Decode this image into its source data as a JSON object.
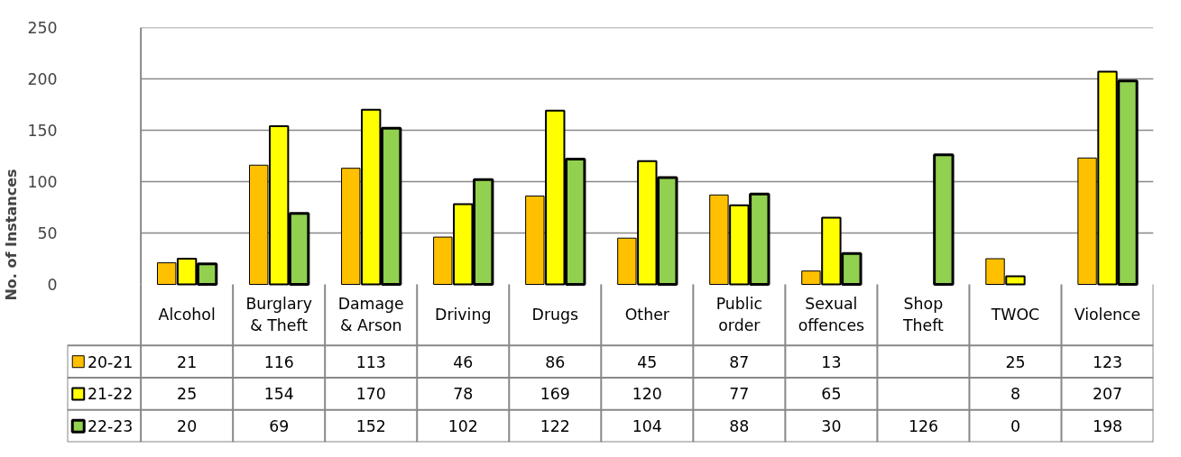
{
  "chart_data": {
    "type": "bar",
    "ylabel": "No. of Instances",
    "categories": [
      "Alcohol",
      "Burglary & Theft",
      "Damage & Arson",
      "Driving",
      "Drugs",
      "Other",
      "Public order",
      "Sexual offences",
      "Shop Theft",
      "TWOC",
      "Violence"
    ],
    "series": [
      {
        "name": "20-21",
        "color": "#ffc000",
        "values": [
          21,
          116,
          113,
          46,
          86,
          45,
          87,
          13,
          null,
          25,
          123
        ]
      },
      {
        "name": "21-22",
        "color": "#ffff00",
        "values": [
          25,
          154,
          170,
          78,
          169,
          120,
          77,
          65,
          null,
          8,
          207
        ]
      },
      {
        "name": "22-23",
        "color": "#92d050",
        "values": [
          20,
          69,
          152,
          102,
          122,
          104,
          88,
          30,
          126,
          0,
          198
        ]
      }
    ],
    "ylim": [
      0,
      250
    ],
    "yticks": [
      0,
      50,
      100,
      150,
      200,
      250
    ],
    "grid": "y",
    "legend": "bottom",
    "data_labels": true
  }
}
